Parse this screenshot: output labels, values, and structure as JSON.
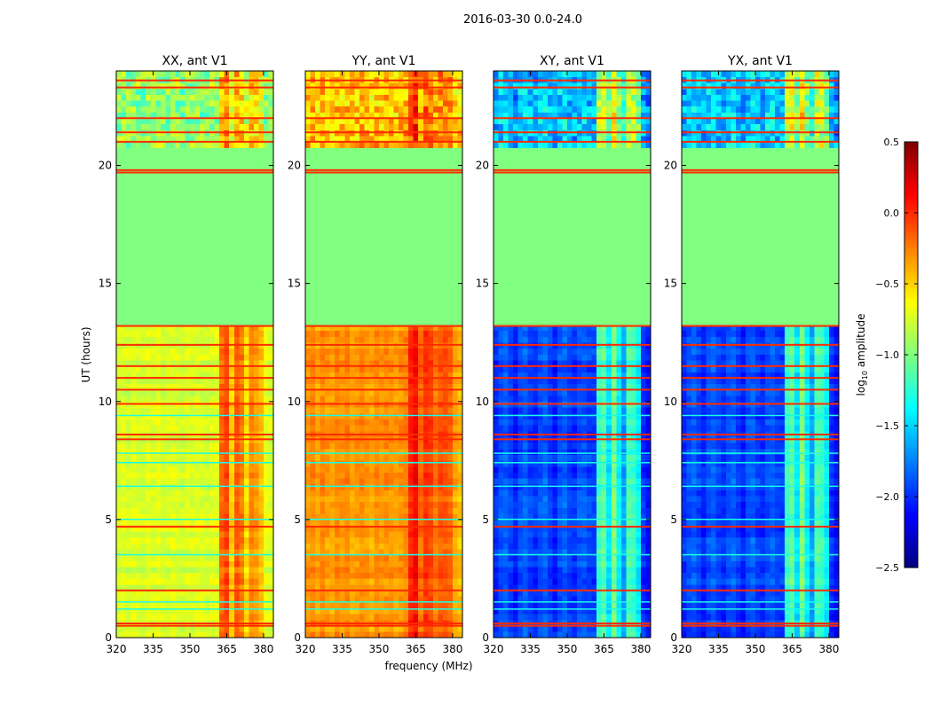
{
  "chart_data": {
    "type": "heatmap",
    "title": "2016-03-30 0.0-24.0",
    "xlabel": "frequency (MHz)",
    "ylabel": "UT (hours)",
    "xlim": [
      320,
      384
    ],
    "ylim": [
      0,
      24
    ],
    "xticks": [
      "320",
      "335",
      "350",
      "365",
      "380"
    ],
    "xtick_values": [
      320,
      335,
      350,
      365,
      380
    ],
    "yticks": [
      "0",
      "5",
      "10",
      "15",
      "20"
    ],
    "ytick_values": [
      0,
      5,
      10,
      15,
      20
    ],
    "freq_bin_mhz": 2,
    "time_bin_hours": 0.25,
    "flagged_hours": [
      13.3,
      20.8
    ],
    "flagged_value": -1.0,
    "rfi_line_hours": [
      0.5,
      0.6,
      2.0,
      4.7,
      8.4,
      8.6,
      9.9,
      10.5,
      11.0,
      11.5,
      12.4,
      13.2,
      19.7,
      19.8,
      21.0,
      21.4,
      22.0,
      23.3,
      23.6
    ],
    "rfi_line_value": 0.0,
    "quiet_line_hours": [
      1.2,
      1.5,
      3.5,
      5.0,
      6.4,
      7.4,
      7.8,
      9.4
    ],
    "quiet_line_value": -1.3,
    "panels": [
      {
        "title": "XX, ant V1",
        "base": -0.75,
        "upper_base": -0.95,
        "freq_offsets": [
          0,
          0.02,
          -0.02,
          0.03,
          0,
          -0.02,
          0.02,
          0,
          0.03,
          -0.02,
          0,
          0.02,
          0,
          -0.03,
          0.02,
          0,
          0.02,
          0,
          -0.02,
          0.02,
          0.03,
          0.55,
          0.65,
          0.25,
          0.6,
          0.5,
          0.2,
          0.45,
          0.4,
          0.3,
          0.05,
          0
        ]
      },
      {
        "title": "YY, ant V1",
        "base": -0.32,
        "upper_base": -0.45,
        "freq_offsets": [
          0,
          0.04,
          -0.03,
          0.05,
          0,
          -0.04,
          0.04,
          0,
          0.05,
          -0.03,
          0,
          0.04,
          0,
          -0.04,
          0.03,
          0,
          0.03,
          0,
          -0.03,
          0.02,
          0.05,
          0.35,
          0.45,
          0.15,
          0.3,
          0.25,
          0.1,
          0.2,
          0.2,
          0.15,
          -0.05,
          -0.1
        ]
      },
      {
        "title": "XY, ant V1",
        "base": -2.0,
        "upper_base": -1.6,
        "freq_offsets": [
          0,
          0.1,
          0.15,
          0.05,
          -0.05,
          0.1,
          0.15,
          0.05,
          0,
          0.1,
          0.15,
          0.05,
          -0.05,
          0.1,
          0.15,
          0.05,
          0,
          0.1,
          0.12,
          0.05,
          0.05,
          0.8,
          0.9,
          0.55,
          1.0,
          0.6,
          0.35,
          0.85,
          0.8,
          0.6,
          0,
          -0.1
        ]
      },
      {
        "title": "YX, ant V1",
        "base": -2.0,
        "upper_base": -1.6,
        "freq_offsets": [
          0,
          0.1,
          0.15,
          0.05,
          -0.05,
          0.1,
          0.15,
          0.05,
          0,
          0.1,
          0.15,
          0.05,
          -0.05,
          0.1,
          0.15,
          0.05,
          0,
          0.1,
          0.12,
          0.05,
          0.05,
          0.8,
          0.9,
          0.55,
          1.0,
          0.6,
          0.35,
          0.85,
          0.8,
          0.6,
          0,
          -0.1
        ]
      }
    ],
    "colorbar": {
      "label": "log10 amplitude",
      "label_main": "log",
      "label_sub": "10",
      "label_rest": " amplitude",
      "range": [
        -2.5,
        0.5
      ],
      "ticks": [
        "0.5",
        "0.0",
        "−0.5",
        "−1.0",
        "−1.5",
        "−2.0",
        "−2.5"
      ],
      "tick_values": [
        0.5,
        0.0,
        -0.5,
        -1.0,
        -1.5,
        -2.0,
        -2.5
      ],
      "colormap": "jet"
    }
  }
}
